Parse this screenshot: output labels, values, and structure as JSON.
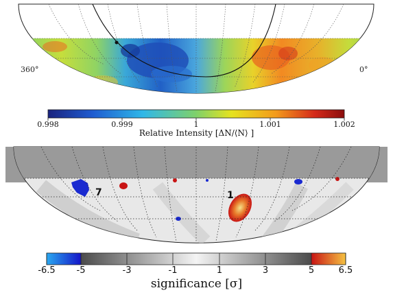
{
  "top_map": {
    "lon_left_label": "360°",
    "lon_right_label": "0°",
    "colorbar": {
      "tick_labels": [
        "0.998",
        "0.999",
        "1",
        "1.001",
        "1.002"
      ],
      "title": "Relative Intensity [ΔN/⟨N⟩ ]",
      "range": [
        0.998,
        1.002
      ],
      "colors": [
        "#1a237e",
        "#1e5bd0",
        "#2fb7e8",
        "#7fd16a",
        "#e6e21f",
        "#f39a1c",
        "#d42a1a",
        "#8b0d0d"
      ]
    }
  },
  "bottom_map": {
    "region_labels": [
      "7",
      "1"
    ],
    "colorbar": {
      "tick_labels": [
        "-6.5",
        "-5",
        "-3",
        "-1",
        "1",
        "3",
        "5",
        "6.5"
      ],
      "title": "significance [σ]",
      "range": [
        -6.5,
        6.5
      ],
      "colors": {
        "low": "#2aa8f0",
        "low_deep": "#1414c8",
        "mid_gray": "#c8c8c8",
        "light": "#f4f4f4",
        "high": "#c81414",
        "high_light": "#f5c242"
      }
    }
  }
}
